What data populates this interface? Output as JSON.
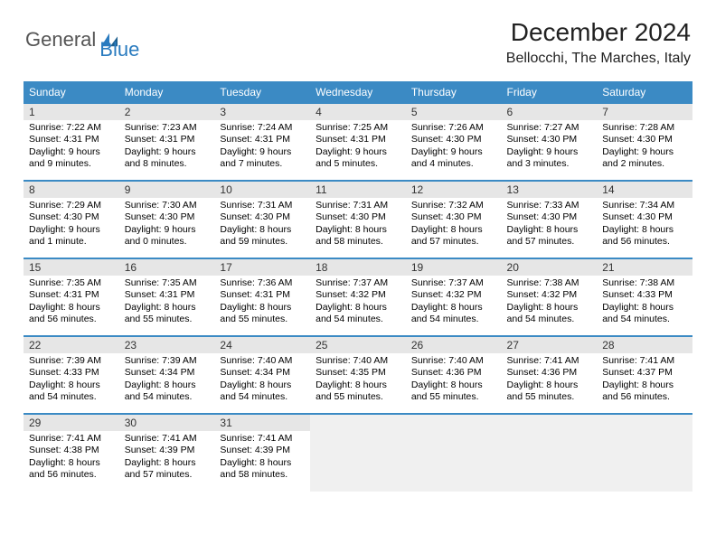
{
  "logo": {
    "part1": "General",
    "part2": "Blue"
  },
  "title": "December 2024",
  "location": "Bellocchi, The Marches, Italy",
  "colors": {
    "header_bg": "#3b8ac4",
    "header_text": "#ffffff",
    "daynum_bg": "#e6e6e6",
    "row_border": "#3b8ac4",
    "logo_gray": "#555555",
    "logo_blue": "#2a7bbf"
  },
  "weekdays": [
    "Sunday",
    "Monday",
    "Tuesday",
    "Wednesday",
    "Thursday",
    "Friday",
    "Saturday"
  ],
  "weeks": [
    [
      {
        "n": "1",
        "sr": "7:22 AM",
        "ss": "4:31 PM",
        "dl": "9 hours and 9 minutes."
      },
      {
        "n": "2",
        "sr": "7:23 AM",
        "ss": "4:31 PM",
        "dl": "9 hours and 8 minutes."
      },
      {
        "n": "3",
        "sr": "7:24 AM",
        "ss": "4:31 PM",
        "dl": "9 hours and 7 minutes."
      },
      {
        "n": "4",
        "sr": "7:25 AM",
        "ss": "4:31 PM",
        "dl": "9 hours and 5 minutes."
      },
      {
        "n": "5",
        "sr": "7:26 AM",
        "ss": "4:30 PM",
        "dl": "9 hours and 4 minutes."
      },
      {
        "n": "6",
        "sr": "7:27 AM",
        "ss": "4:30 PM",
        "dl": "9 hours and 3 minutes."
      },
      {
        "n": "7",
        "sr": "7:28 AM",
        "ss": "4:30 PM",
        "dl": "9 hours and 2 minutes."
      }
    ],
    [
      {
        "n": "8",
        "sr": "7:29 AM",
        "ss": "4:30 PM",
        "dl": "9 hours and 1 minute."
      },
      {
        "n": "9",
        "sr": "7:30 AM",
        "ss": "4:30 PM",
        "dl": "9 hours and 0 minutes."
      },
      {
        "n": "10",
        "sr": "7:31 AM",
        "ss": "4:30 PM",
        "dl": "8 hours and 59 minutes."
      },
      {
        "n": "11",
        "sr": "7:31 AM",
        "ss": "4:30 PM",
        "dl": "8 hours and 58 minutes."
      },
      {
        "n": "12",
        "sr": "7:32 AM",
        "ss": "4:30 PM",
        "dl": "8 hours and 57 minutes."
      },
      {
        "n": "13",
        "sr": "7:33 AM",
        "ss": "4:30 PM",
        "dl": "8 hours and 57 minutes."
      },
      {
        "n": "14",
        "sr": "7:34 AM",
        "ss": "4:30 PM",
        "dl": "8 hours and 56 minutes."
      }
    ],
    [
      {
        "n": "15",
        "sr": "7:35 AM",
        "ss": "4:31 PM",
        "dl": "8 hours and 56 minutes."
      },
      {
        "n": "16",
        "sr": "7:35 AM",
        "ss": "4:31 PM",
        "dl": "8 hours and 55 minutes."
      },
      {
        "n": "17",
        "sr": "7:36 AM",
        "ss": "4:31 PM",
        "dl": "8 hours and 55 minutes."
      },
      {
        "n": "18",
        "sr": "7:37 AM",
        "ss": "4:32 PM",
        "dl": "8 hours and 54 minutes."
      },
      {
        "n": "19",
        "sr": "7:37 AM",
        "ss": "4:32 PM",
        "dl": "8 hours and 54 minutes."
      },
      {
        "n": "20",
        "sr": "7:38 AM",
        "ss": "4:32 PM",
        "dl": "8 hours and 54 minutes."
      },
      {
        "n": "21",
        "sr": "7:38 AM",
        "ss": "4:33 PM",
        "dl": "8 hours and 54 minutes."
      }
    ],
    [
      {
        "n": "22",
        "sr": "7:39 AM",
        "ss": "4:33 PM",
        "dl": "8 hours and 54 minutes."
      },
      {
        "n": "23",
        "sr": "7:39 AM",
        "ss": "4:34 PM",
        "dl": "8 hours and 54 minutes."
      },
      {
        "n": "24",
        "sr": "7:40 AM",
        "ss": "4:34 PM",
        "dl": "8 hours and 54 minutes."
      },
      {
        "n": "25",
        "sr": "7:40 AM",
        "ss": "4:35 PM",
        "dl": "8 hours and 55 minutes."
      },
      {
        "n": "26",
        "sr": "7:40 AM",
        "ss": "4:36 PM",
        "dl": "8 hours and 55 minutes."
      },
      {
        "n": "27",
        "sr": "7:41 AM",
        "ss": "4:36 PM",
        "dl": "8 hours and 55 minutes."
      },
      {
        "n": "28",
        "sr": "7:41 AM",
        "ss": "4:37 PM",
        "dl": "8 hours and 56 minutes."
      }
    ],
    [
      {
        "n": "29",
        "sr": "7:41 AM",
        "ss": "4:38 PM",
        "dl": "8 hours and 56 minutes."
      },
      {
        "n": "30",
        "sr": "7:41 AM",
        "ss": "4:39 PM",
        "dl": "8 hours and 57 minutes."
      },
      {
        "n": "31",
        "sr": "7:41 AM",
        "ss": "4:39 PM",
        "dl": "8 hours and 58 minutes."
      },
      null,
      null,
      null,
      null
    ]
  ],
  "labels": {
    "sunrise": "Sunrise:",
    "sunset": "Sunset:",
    "daylight": "Daylight:"
  }
}
